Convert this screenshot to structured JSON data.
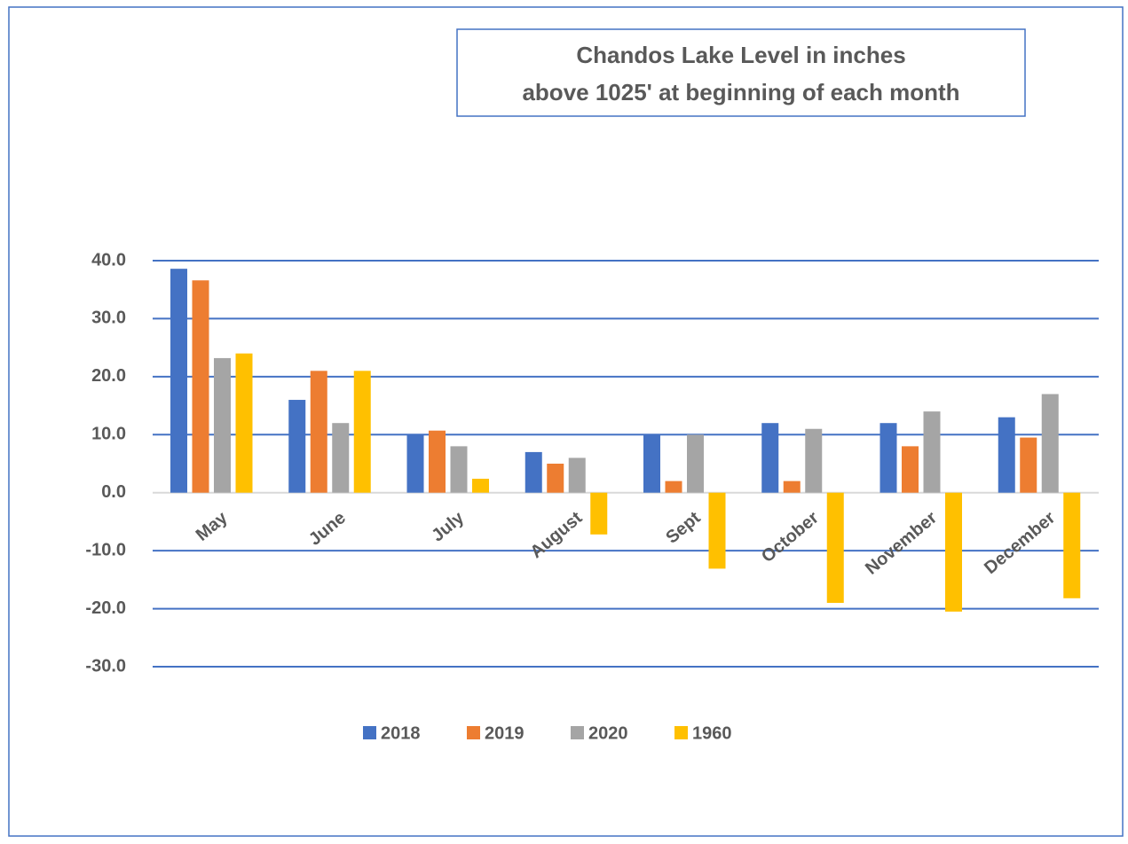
{
  "chart_data": {
    "type": "bar",
    "title": [
      "Chandos Lake Level in inches",
      "above 1025' at beginning of each month"
    ],
    "categories": [
      "May",
      "June",
      "July",
      "August",
      "Sept",
      "October",
      "November",
      "December"
    ],
    "series": [
      {
        "name": "2018",
        "color": "#4472c4",
        "values": [
          38.6,
          16,
          10,
          7,
          10,
          12,
          12,
          13
        ]
      },
      {
        "name": "2019",
        "color": "#ed7d31",
        "values": [
          36.6,
          21,
          10.7,
          5,
          2,
          2,
          8,
          9.5
        ]
      },
      {
        "name": "2020",
        "color": "#a5a5a5",
        "values": [
          23.2,
          12,
          8,
          6,
          10,
          11,
          14,
          17
        ]
      },
      {
        "name": "1960",
        "color": "#ffc000",
        "values": [
          24,
          21,
          2.4,
          -7.2,
          -13.1,
          -19,
          -20.5,
          -18.2
        ]
      }
    ],
    "ylim": [
      -30,
      40
    ],
    "yticks": [
      {
        "value": -30,
        "label": "-30.0"
      },
      {
        "value": -20,
        "label": "-20.0"
      },
      {
        "value": -10,
        "label": "-10.0"
      },
      {
        "value": 0,
        "label": "0.0"
      },
      {
        "value": 10,
        "label": "10.0"
      },
      {
        "value": 20,
        "label": "20.0"
      },
      {
        "value": 30,
        "label": "30.0"
      },
      {
        "value": 40,
        "label": "40.0"
      }
    ],
    "grid": true,
    "grid_color": "#4472c4",
    "legend": "bottom"
  }
}
